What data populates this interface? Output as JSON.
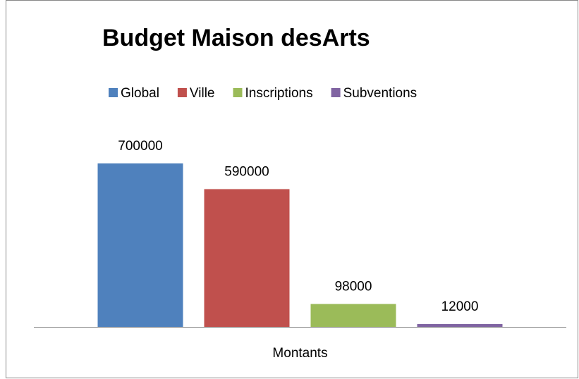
{
  "chart_data": {
    "type": "bar",
    "title": "Budget Maison desArts",
    "categories": [
      "Montants"
    ],
    "legend": "top",
    "series": [
      {
        "name": "Global",
        "color": "#4f81bd",
        "values": [
          700000
        ]
      },
      {
        "name": "Ville",
        "color": "#c0504d",
        "values": [
          590000
        ]
      },
      {
        "name": "Inscriptions",
        "color": "#9bbb59",
        "values": [
          98000
        ]
      },
      {
        "name": "Subventions",
        "color": "#8064a2",
        "values": [
          12000
        ]
      }
    ]
  }
}
